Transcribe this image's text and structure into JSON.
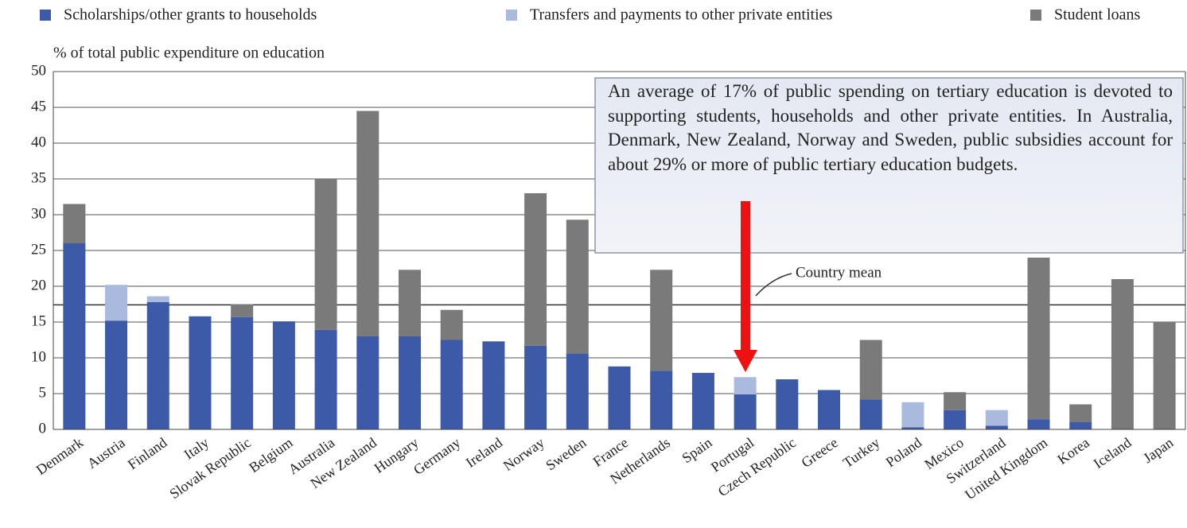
{
  "chart_data": {
    "type": "stacked_bar",
    "y_axis_label": "% of total public expenditure on education",
    "categories": [
      "Denmark",
      "Austria",
      "Finland",
      "Italy",
      "Slovak Republic",
      "Belgium",
      "Australia",
      "New Zealand",
      "Hungary",
      "Germany",
      "Ireland",
      "Norway",
      "Sweden",
      "France",
      "Netherlands",
      "Spain",
      "Portugal",
      "Czech Republic",
      "Greece",
      "Turkey",
      "Poland",
      "Mexico",
      "Switzerland",
      "United Kingdom",
      "Korea",
      "Iceland",
      "Japan"
    ],
    "series": [
      {
        "name": "Scholarships/other grants to households",
        "color": "#3d5aa8",
        "values": [
          26,
          15.2,
          17.8,
          15.8,
          15.7,
          15.1,
          13.9,
          13,
          13,
          12.5,
          12.3,
          11.7,
          10.6,
          8.8,
          8.2,
          7.9,
          4.9,
          7,
          5.5,
          4.2,
          0.3,
          2.7,
          0.5,
          1.4,
          1,
          0,
          0
        ]
      },
      {
        "name": "Transfers and payments to other private entities",
        "color": "#aab9de",
        "values": [
          0,
          5,
          0.8,
          0,
          0,
          0,
          0,
          0,
          0,
          0,
          0,
          0,
          0,
          0,
          0,
          0,
          2.4,
          0,
          0,
          0,
          3.5,
          0,
          2.2,
          0,
          0,
          0,
          0
        ]
      },
      {
        "name": "Student loans",
        "color": "#7a7a7a",
        "values": [
          5.5,
          0,
          0,
          0,
          1.8,
          0,
          21.1,
          31.5,
          9.3,
          4.2,
          0,
          21.3,
          18.7,
          0,
          14.1,
          0,
          0,
          0,
          0,
          8.3,
          0,
          2.5,
          0,
          22.6,
          2.5,
          21,
          15
        ]
      }
    ],
    "ylim": [
      0,
      50
    ],
    "yticks": [
      0,
      5,
      10,
      15,
      20,
      25,
      30,
      35,
      40,
      45,
      50
    ],
    "grid": true,
    "legend": "top",
    "mean_line": {
      "label": "Country mean",
      "value": 17.4
    },
    "annotation": "An average of 17% of public spending on tertiary education is devoted to supporting students, households and other private entities. In Australia, Denmark, New Zealand, Norway and Sweden, public subsidies account for about 29% or more of public tertiary education budgets."
  }
}
